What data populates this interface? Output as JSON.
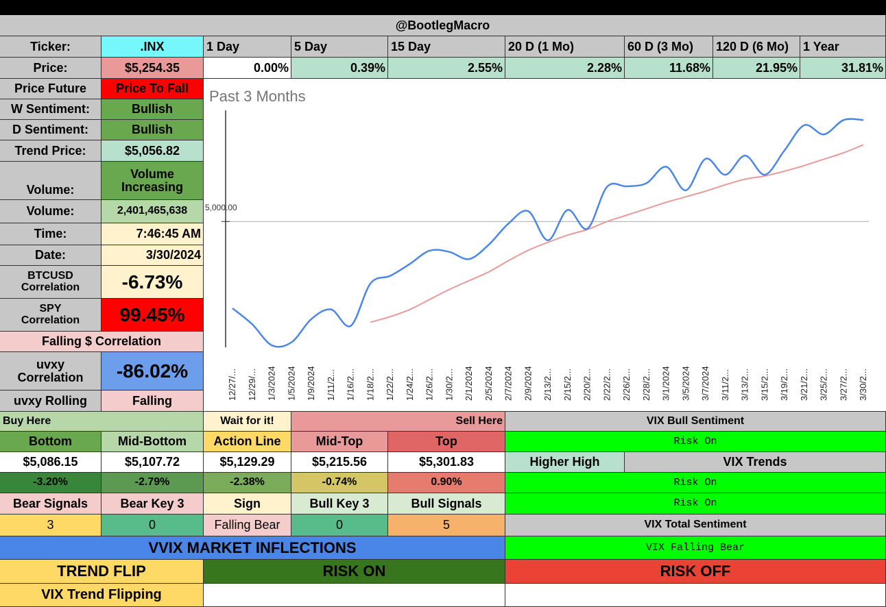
{
  "header": {
    "title": "@BootlegMacro"
  },
  "ticker_row": {
    "label": "Ticker:",
    "value": ".INX",
    "periods": [
      "1 Day",
      "5 Day",
      "15 Day",
      "20 D (1 Mo)",
      "60 D (3 Mo)",
      "120 D (6 Mo)",
      "1 Year"
    ]
  },
  "price_row": {
    "label": "Price:",
    "value": "$5,254.35",
    "changes": [
      "0.00%",
      "0.39%",
      "2.55%",
      "2.28%",
      "11.68%",
      "21.95%",
      "31.81%"
    ]
  },
  "stats": {
    "price_future": {
      "label": "Price Future",
      "value": "Price To Fall"
    },
    "w_sentiment": {
      "label": "W Sentiment:",
      "value": "Bullish"
    },
    "d_sentiment": {
      "label": "D Sentiment:",
      "value": "Bullish"
    },
    "trend_price": {
      "label": "Trend Price:",
      "value": "$5,056.82"
    },
    "volume_status": {
      "label": "Volume:",
      "value": "Volume Increasing"
    },
    "volume": {
      "label": "Volume:",
      "value": "2,401,465,638"
    },
    "time": {
      "label": "Time:",
      "value": "7:46:45 AM"
    },
    "date": {
      "label": "Date:",
      "value": "3/30/2024"
    },
    "btcusd": {
      "label": "BTCUSD Correlation",
      "value": "-6.73%"
    },
    "spy": {
      "label": "SPY Correlation",
      "value": "99.45%"
    },
    "falling": {
      "label": "Falling $ Correlation"
    },
    "uvxy": {
      "label": "uvxy Correlation",
      "value": "-86.02%"
    },
    "uvxy_rolling": {
      "label": "uvxy Rolling",
      "value": "Falling"
    }
  },
  "chart_data": {
    "type": "line",
    "title": "Past 3 Months",
    "ytick_label": "5,000.00",
    "x": [
      "12/27/...",
      "12/29/...",
      "1/3/2024",
      "1/5/2024",
      "1/9/2024",
      "1/11/2...",
      "1/16/2...",
      "1/18/2...",
      "1/22/2...",
      "1/24/2...",
      "1/26/2...",
      "1/30/2...",
      "2/1/2024",
      "2/5/2024",
      "2/7/2024",
      "2/9/2024",
      "2/13/2...",
      "2/15/2...",
      "2/20/2...",
      "2/22/2...",
      "2/26/2...",
      "2/28/2...",
      "3/1/2024",
      "3/5/2024",
      "3/7/2024",
      "3/11/2...",
      "3/13/2...",
      "3/15/2...",
      "3/19/2...",
      "3/21/2...",
      "3/25/2...",
      "3/27/2...",
      "3/30/2..."
    ],
    "series": [
      {
        "name": "Price",
        "color": "#4a86e8",
        "values": [
          4783,
          4743,
          4690,
          4698,
          4756,
          4780,
          4739,
          4845,
          4864,
          4894,
          4927,
          4924,
          4906,
          4942,
          4995,
          5026,
          4953,
          5029,
          4982,
          5087,
          5088,
          5096,
          5137,
          5078,
          5157,
          5117,
          5165,
          5117,
          5178,
          5241,
          5218,
          5254,
          5254
        ]
      },
      {
        "name": "Trend",
        "color": "#ea9999",
        "values": [
          null,
          null,
          null,
          null,
          null,
          null,
          null,
          4748,
          4762,
          4780,
          4805,
          4830,
          4852,
          4874,
          4902,
          4928,
          4948,
          4966,
          4980,
          5000,
          5016,
          5032,
          5048,
          5062,
          5076,
          5092,
          5106,
          5114,
          5126,
          5140,
          5156,
          5172,
          5192
        ]
      }
    ],
    "ylim": [
      4680,
      5280
    ]
  },
  "levels": {
    "buy_here": "Buy Here",
    "wait": "Wait for it!",
    "sell_here": "Sell Here",
    "names": [
      "Bottom",
      "Mid-Bottom",
      "Action Line",
      "Mid-Top",
      "Top"
    ],
    "prices": [
      "$5,086.15",
      "$5,107.72",
      "$5,129.29",
      "$5,215.56",
      "$5,301.83"
    ],
    "pcts": [
      "-3.20%",
      "-2.79%",
      "-2.38%",
      "-0.74%",
      "0.90%"
    ]
  },
  "signals": {
    "labels": [
      "Bear Signals",
      "Bear Key 3",
      "Sign",
      "Bull Key 3",
      "Bull Signals"
    ],
    "values": [
      "3",
      "0",
      "Falling Bear",
      "0",
      "5"
    ]
  },
  "vix": {
    "bull_sentiment": "VIX Bull Sentiment",
    "risk_on_1": "Risk On",
    "higher_high": "Higher High",
    "trends": "VIX Trends",
    "risk_on_2": "Risk On",
    "risk_on_3": "Risk On",
    "total_sentiment": "VIX Total Sentiment",
    "falling_bear": "VIX Falling Bear"
  },
  "bottom": {
    "vvix": "VVIX MARKET INFLECTIONS",
    "trend_flip": "TREND FLIP",
    "risk_on": "RISK ON",
    "risk_off": "RISK OFF",
    "vix_trend": "VIX Trend Flipping"
  }
}
